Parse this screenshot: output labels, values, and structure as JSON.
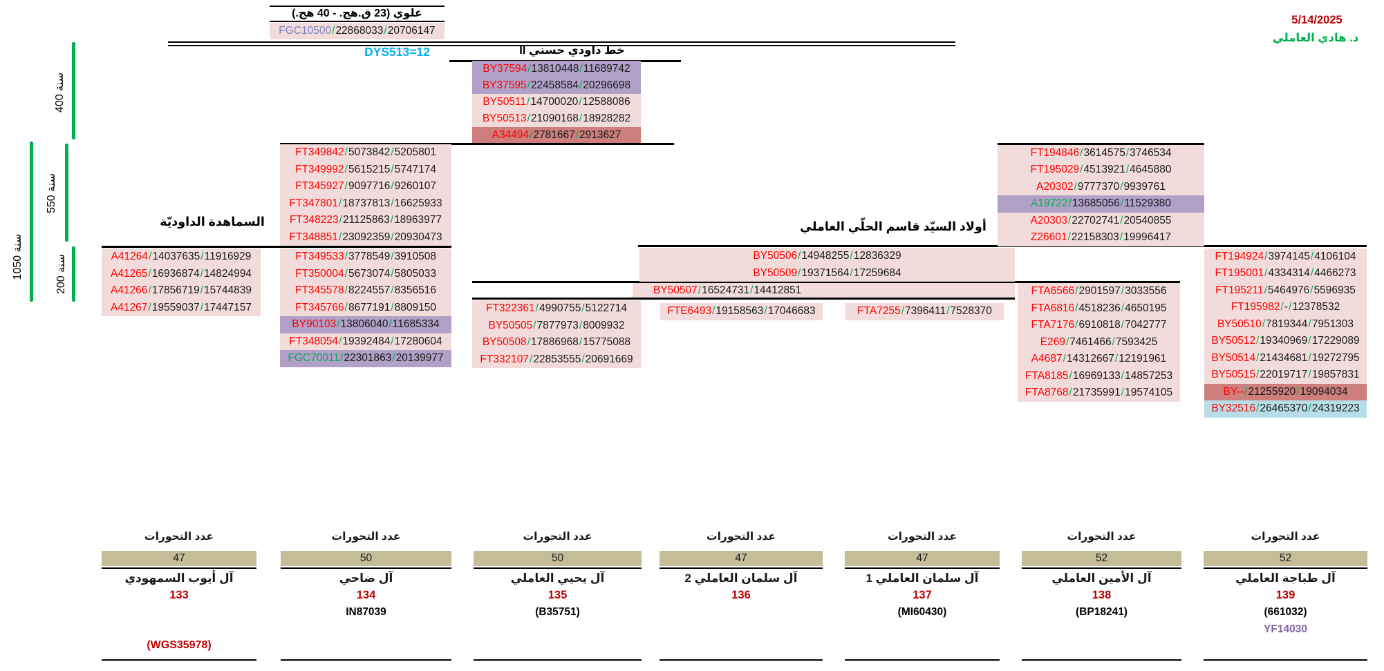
{
  "meta": {
    "date": "5/14/2025",
    "author": "د. هادي العاملي"
  },
  "headers": {
    "alawi": "علوي (23 ق.هج. - 40 هج.)",
    "dys": "DYS513=12",
    "khat": "خط داودي حسني II",
    "samahida": "السماهدة الداوديّة",
    "awlad": "أولاد السيّد قاسم الحلّي العاملي"
  },
  "scale_bars": {
    "y400": "400 سنة",
    "y550": "550 سنة",
    "y200": "200 سنة",
    "y1050": "1050 سنة"
  },
  "colors": {
    "snp_red": "#FF0000",
    "snp_green": "#00B050",
    "snp_periwinkle": "#7C83BC",
    "slash_green": "#00B050",
    "bg_pink": "#F2DCDB",
    "bg_purple": "#B1A0C7",
    "bg_darkred": "#CE7E7C",
    "bg_lightblue": "#B7DEE8",
    "khaki_box": "#C4BD97",
    "dys_cyan": "#00B0F0",
    "date_red": "#C00000",
    "author_green": "#00B050",
    "yf_purple": "#8064A2",
    "bar_green": "#00B050"
  },
  "root_row": [
    {
      "n": "FGC10500",
      "nc": "periwinkle",
      "v1": "22868033",
      "v2": "20706147",
      "bg": "pink"
    }
  ],
  "khat_col": [
    {
      "n": "BY37594",
      "nc": "red",
      "v1": "13810448",
      "v2": "11689742",
      "bg": "purple"
    },
    {
      "n": "BY37595",
      "nc": "red",
      "v1": "22458584",
      "v2": "20296698",
      "bg": "purple"
    },
    {
      "n": "BY50511",
      "nc": "red",
      "v1": "14700020",
      "v2": "12588086",
      "bg": "pink"
    },
    {
      "n": "BY50513",
      "nc": "red",
      "v1": "21090168",
      "v2": "18928282",
      "bg": "pink"
    },
    {
      "n": "A34494",
      "nc": "red",
      "v1": "2781667",
      "v2": "2913627",
      "bg": "darkred"
    }
  ],
  "col_a": [
    {
      "n": "A41264",
      "nc": "red",
      "v1": "14037635",
      "v2": "11916929",
      "bg": "pink"
    },
    {
      "n": "A41265",
      "nc": "red",
      "v1": "16936874",
      "v2": "14824994",
      "bg": "pink"
    },
    {
      "n": "A41266",
      "nc": "red",
      "v1": "17856719",
      "v2": "15744839",
      "bg": "pink"
    },
    {
      "n": "A41267",
      "nc": "red",
      "v1": "19559037",
      "v2": "17447157",
      "bg": "pink"
    }
  ],
  "col_b_upper": [
    {
      "n": "FT349842",
      "nc": "red",
      "v1": "5073842",
      "v2": "5205801",
      "bg": "pink"
    },
    {
      "n": "FT349992",
      "nc": "red",
      "v1": "5615215",
      "v2": "5747174",
      "bg": "pink"
    },
    {
      "n": "FT345927",
      "nc": "red",
      "v1": "9097716",
      "v2": "9260107",
      "bg": "pink"
    },
    {
      "n": "FT347801",
      "nc": "red",
      "v1": "18737813",
      "v2": "16625933",
      "bg": "pink"
    },
    {
      "n": "FT348223",
      "nc": "red",
      "v1": "21125863",
      "v2": "18963977",
      "bg": "pink"
    },
    {
      "n": "FT348851",
      "nc": "red",
      "v1": "23092359",
      "v2": "20930473",
      "bg": "pink"
    }
  ],
  "col_b_lower": [
    {
      "n": "FT349533",
      "nc": "red",
      "v1": "3778549",
      "v2": "3910508",
      "bg": "pink"
    },
    {
      "n": "FT350004",
      "nc": "red",
      "v1": "5673074",
      "v2": "5805033",
      "bg": "pink"
    },
    {
      "n": "FT345578",
      "nc": "red",
      "v1": "8224557",
      "v2": "8356516",
      "bg": "pink"
    },
    {
      "n": "FT345766",
      "nc": "red",
      "v1": "8677191",
      "v2": "8809150",
      "bg": "pink"
    },
    {
      "n": "BY90103",
      "nc": "red",
      "v1": "13806040",
      "v2": "11685334",
      "bg": "purple"
    },
    {
      "n": "FT348054",
      "nc": "red",
      "v1": "19392484",
      "v2": "17280604",
      "bg": "pink"
    },
    {
      "n": "FGC70011",
      "nc": "green",
      "v1": "22301863",
      "v2": "20139977",
      "bg": "purple"
    }
  ],
  "col_c": [
    {
      "n": "FT322361",
      "nc": "red",
      "v1": "4990755",
      "v2": "5122714",
      "bg": "pink"
    },
    {
      "n": "BY50505",
      "nc": "red",
      "v1": "7877973",
      "v2": "8009932",
      "bg": "pink"
    },
    {
      "n": "BY50508",
      "nc": "red",
      "v1": "17886968",
      "v2": "15775088",
      "bg": "pink"
    },
    {
      "n": "FT332107",
      "nc": "red",
      "v1": "22853555",
      "v2": "20691669",
      "bg": "pink"
    }
  ],
  "mid_band": [
    {
      "n": "BY50506",
      "nc": "red",
      "v1": "14948255",
      "v2": "12836329",
      "bg": "pink"
    },
    {
      "n": "BY50509",
      "nc": "red",
      "v1": "19371564",
      "v2": "17259684",
      "bg": "pink"
    }
  ],
  "by50507_row": [
    {
      "n": "BY50507",
      "nc": "red",
      "v1": "16524731",
      "v2": "14412851",
      "bg": "pink"
    }
  ],
  "fte6493_row": [
    {
      "n": "FTE6493",
      "nc": "red",
      "v1": "19158563",
      "v2": "17046683",
      "bg": "pink"
    }
  ],
  "fta7255_row": [
    {
      "n": "FTA7255",
      "nc": "red",
      "v1": "7396411",
      "v2": "7528370",
      "bg": "pink"
    }
  ],
  "col_e_upper": [
    {
      "n": "FT194846",
      "nc": "red",
      "v1": "3614575",
      "v2": "3746534",
      "bg": "pink"
    },
    {
      "n": "FT195029",
      "nc": "red",
      "v1": "4513921",
      "v2": "4645880",
      "bg": "pink"
    },
    {
      "n": "A20302",
      "nc": "red",
      "v1": "9777370",
      "v2": "9939761",
      "bg": "pink"
    },
    {
      "n": "A19722",
      "nc": "green",
      "v1": "13685056",
      "v2": "11529380",
      "bg": "purple"
    },
    {
      "n": "A20303",
      "nc": "red",
      "v1": "22702741",
      "v2": "20540855",
      "bg": "pink"
    },
    {
      "n": "Z26601",
      "nc": "red",
      "v1": "22158303",
      "v2": "19996417",
      "bg": "pink"
    }
  ],
  "col_e_lower": [
    {
      "n": "FTA6566",
      "nc": "red",
      "v1": "2901597",
      "v2": "3033556",
      "bg": "pink"
    },
    {
      "n": "FTA6816",
      "nc": "red",
      "v1": "4518236",
      "v2": "4650195",
      "bg": "pink"
    },
    {
      "n": "FTA7176",
      "nc": "red",
      "v1": "6910818",
      "v2": "7042777",
      "bg": "pink"
    },
    {
      "n": "E269",
      "nc": "red",
      "v1": "7461466",
      "v2": "7593425",
      "bg": "pink"
    },
    {
      "n": "A4687",
      "nc": "red",
      "v1": "14312667",
      "v2": "12191961",
      "bg": "pink"
    },
    {
      "n": "FTA8185",
      "nc": "red",
      "v1": "16969133",
      "v2": "14857253",
      "bg": "pink"
    },
    {
      "n": "FTA8768",
      "nc": "red",
      "v1": "21735991",
      "v2": "19574105",
      "bg": "pink"
    }
  ],
  "col_f": [
    {
      "n": "FT194924",
      "nc": "red",
      "v1": "3974145",
      "v2": "4106104",
      "bg": "pink"
    },
    {
      "n": "FT195001",
      "nc": "red",
      "v1": "4334314",
      "v2": "4466273",
      "bg": "pink"
    },
    {
      "n": "FT195211",
      "nc": "red",
      "v1": "5464976",
      "v2": "5596935",
      "bg": "pink"
    },
    {
      "n": "FT195982",
      "nc": "red",
      "v1": "-",
      "v2": "12378532",
      "bg": "pink"
    },
    {
      "n": "BY50510",
      "nc": "red",
      "v1": "7819344",
      "v2": "7951303",
      "bg": "pink"
    },
    {
      "n": "BY50512",
      "nc": "red",
      "v1": "19340969",
      "v2": "17229089",
      "bg": "pink"
    },
    {
      "n": "BY50514",
      "nc": "red",
      "v1": "21434681",
      "v2": "19272795",
      "bg": "pink"
    },
    {
      "n": "BY50515",
      "nc": "red",
      "v1": "22019717",
      "v2": "19857831",
      "bg": "pink"
    },
    {
      "n": "BY--",
      "nc": "red",
      "v1": "21255920",
      "v2": "19094034",
      "bg": "darkred"
    },
    {
      "n": "BY32516",
      "nc": "red",
      "v1": "26465370",
      "v2": "24319223",
      "bg": "lightblue"
    }
  ],
  "bottom": {
    "mutations_label": "عدد التحورات",
    "columns": [
      {
        "count": "47",
        "family": "آل أيوب السمهودي",
        "number": "133",
        "kit": "",
        "yf": "",
        "wgs": "(WGS35978)"
      },
      {
        "count": "50",
        "family": "آل ضاحي",
        "number": "134",
        "kit": "IN87039",
        "yf": "",
        "wgs": ""
      },
      {
        "count": "50",
        "family": "آل يحيي العاملي",
        "number": "135",
        "kit": "(B35751)",
        "yf": "",
        "wgs": ""
      },
      {
        "count": "47",
        "family": "آل سلمان العاملي 2",
        "number": "136",
        "kit": "",
        "yf": "",
        "wgs": ""
      },
      {
        "count": "47",
        "family": "آل سلمان العاملي 1",
        "number": "137",
        "kit": "(MI60430)",
        "yf": "",
        "wgs": ""
      },
      {
        "count": "52",
        "family": "آل الأمين العاملي",
        "number": "138",
        "kit": "(BP18241)",
        "yf": "",
        "wgs": ""
      },
      {
        "count": "52",
        "family": "آل طباجة العاملي",
        "number": "139",
        "kit": "(661032)",
        "yf": "YF14030",
        "wgs": ""
      }
    ]
  }
}
